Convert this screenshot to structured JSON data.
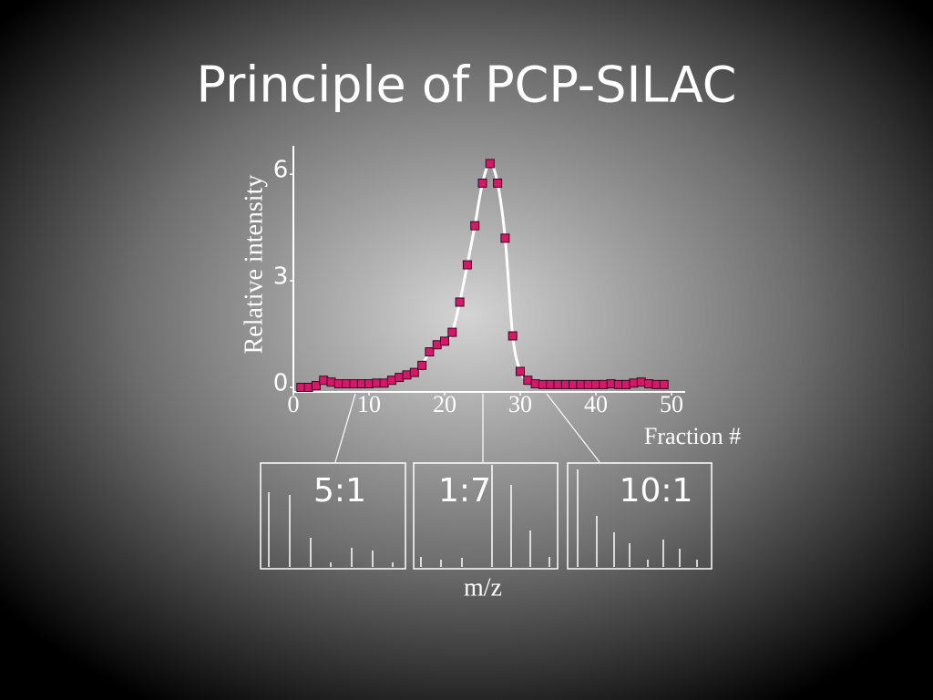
{
  "title": "Principle of PCP-SILAC",
  "chart_data": {
    "type": "scatter",
    "xlabel": "Fraction #",
    "ylabel": "Relative intensity",
    "xlim": [
      0,
      50
    ],
    "xticks": [
      0,
      10,
      20,
      30,
      40,
      50
    ],
    "ylim": [
      0,
      6.8
    ],
    "yticks": [
      0,
      3,
      6
    ],
    "line": true,
    "line_color": "#ffffff",
    "series": [
      {
        "color": "#d6186a",
        "x": [
          1,
          2,
          3,
          4,
          5,
          6,
          7,
          8,
          9,
          10,
          11,
          12,
          13,
          14,
          15,
          16,
          17,
          18,
          19,
          20,
          21,
          22,
          23,
          24,
          25,
          26,
          27,
          28,
          29,
          30,
          31,
          32,
          33,
          34,
          35,
          36,
          37,
          38,
          39,
          40,
          41,
          42,
          43,
          44,
          45,
          46,
          47,
          48,
          49
        ],
        "values": [
          0,
          0,
          0.05,
          0.2,
          0.15,
          0.1,
          0.1,
          0.1,
          0.1,
          0.1,
          0.12,
          0.12,
          0.2,
          0.28,
          0.35,
          0.42,
          0.62,
          1.0,
          1.2,
          1.3,
          1.55,
          2.4,
          3.45,
          4.55,
          5.75,
          6.3,
          5.75,
          4.2,
          1.45,
          0.45,
          0.2,
          0.1,
          0.08,
          0.08,
          0.08,
          0.08,
          0.08,
          0.08,
          0.08,
          0.08,
          0.08,
          0.1,
          0.08,
          0.08,
          0.12,
          0.15,
          0.1,
          0.08,
          0.08
        ]
      }
    ]
  },
  "insets": {
    "labels": [
      "5:1",
      "1:7",
      "10:1"
    ],
    "xlabel": "m/z"
  }
}
